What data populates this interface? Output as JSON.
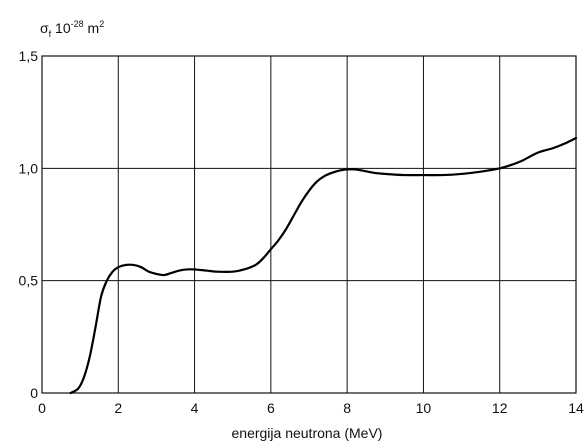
{
  "chart_data": {
    "type": "line",
    "title": "",
    "ylabel": {
      "symbol": "σ",
      "sub": "f",
      "text": " 10",
      "exp": "-28",
      "unit": " m",
      "unit_exp": "2"
    },
    "xlabel": "energija neutrona (MeV)",
    "xlim": [
      0,
      14
    ],
    "ylim": [
      0,
      1.5
    ],
    "x_ticks": [
      0,
      2,
      4,
      6,
      8,
      10,
      12,
      14
    ],
    "x_tick_labels": [
      "0",
      "2",
      "4",
      "6",
      "8",
      "10",
      "12",
      "14"
    ],
    "y_ticks": [
      0,
      0.5,
      1.0,
      1.5
    ],
    "y_tick_labels": [
      "0",
      "0,5",
      "1,0",
      "1,5"
    ],
    "grid": true,
    "series": [
      {
        "color": "#000000",
        "x": [
          0.75,
          0.95,
          1.1,
          1.25,
          1.4,
          1.55,
          1.7,
          1.85,
          2.0,
          2.2,
          2.4,
          2.6,
          2.8,
          3.0,
          3.2,
          3.4,
          3.6,
          3.8,
          4.0,
          4.3,
          4.6,
          5.0,
          5.3,
          5.6,
          5.8,
          6.0,
          6.2,
          6.4,
          6.6,
          6.8,
          7.0,
          7.2,
          7.4,
          7.6,
          7.8,
          8.0,
          8.2,
          8.4,
          8.7,
          9.0,
          9.5,
          10.0,
          10.5,
          11.0,
          11.5,
          12.0,
          12.3,
          12.6,
          13.0,
          13.4,
          13.7,
          14.0
        ],
        "values": [
          0.0,
          0.02,
          0.07,
          0.16,
          0.29,
          0.43,
          0.5,
          0.54,
          0.56,
          0.57,
          0.57,
          0.56,
          0.54,
          0.53,
          0.525,
          0.535,
          0.545,
          0.55,
          0.55,
          0.545,
          0.54,
          0.54,
          0.55,
          0.57,
          0.6,
          0.64,
          0.68,
          0.73,
          0.79,
          0.85,
          0.9,
          0.94,
          0.965,
          0.98,
          0.99,
          0.995,
          0.995,
          0.99,
          0.98,
          0.975,
          0.97,
          0.97,
          0.97,
          0.975,
          0.985,
          1.0,
          1.015,
          1.035,
          1.07,
          1.09,
          1.11,
          1.135
        ]
      }
    ]
  }
}
